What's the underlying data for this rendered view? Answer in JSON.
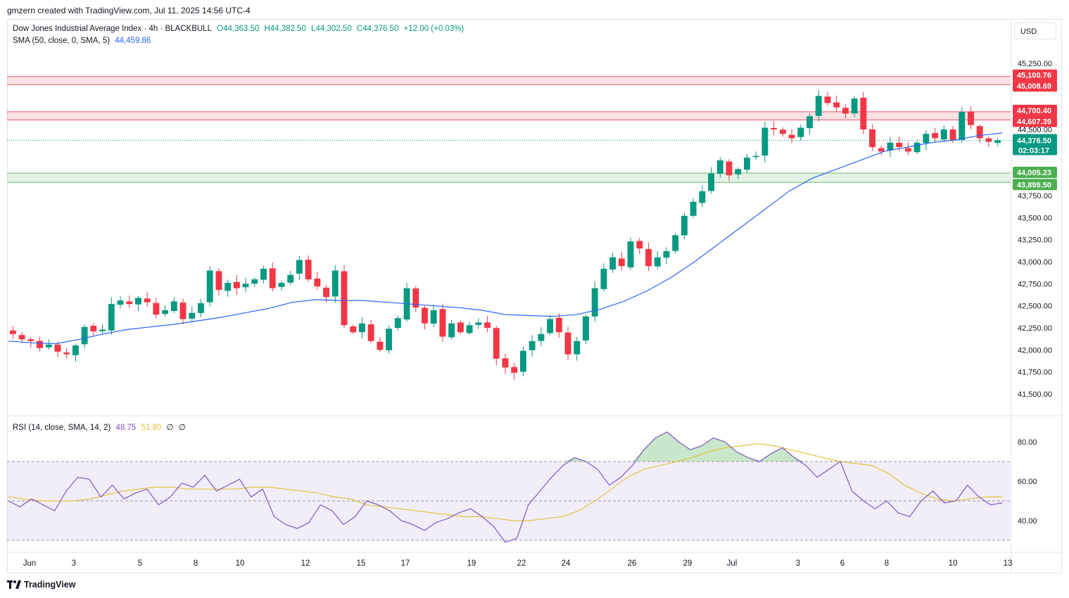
{
  "header": {
    "attribution": "gmzern created with TradingView.com, Jul 11, 2025 14:56 UTC-4"
  },
  "legend": {
    "symbol": "Dow Jones Industrial Average Index · 4h · BLACKBULL",
    "open": "O44,363.50",
    "high": "H44,382.50",
    "low": "L44,302.50",
    "close": "C44,376.50",
    "change": "+12.00 (+0.03%)",
    "sma_label": "SMA (50, close, 0, SMA, 5)",
    "sma_value": "44,459.86",
    "rsi_label": "RSI (14, close, SMA, 14, 2)",
    "rsi_value": "48.75",
    "rsi_sma_value": "51.80",
    "rsi_extra1": "∅",
    "rsi_extra2": "∅"
  },
  "currency": "USD",
  "footer": {
    "brand": "TradingView"
  },
  "colors": {
    "up": "#089981",
    "down": "#f23645",
    "sma": "#2962ff",
    "rsi": "#7e57c2",
    "rsi_sma": "#e1c339",
    "resistance_zone": "#f23645",
    "support_zone": "#4caf50"
  },
  "chart_data": [
    {
      "type": "candlestick",
      "title": "Dow Jones Industrial Average Index · 4h · BLACKBULL",
      "ylim": [
        41300,
        45450
      ],
      "y_ticks": [
        "45,250.00",
        "45,000.00",
        "44,750.00",
        "44,500.00",
        "44,250.00",
        "44,000.00",
        "43,750.00",
        "43,500.00",
        "43,250.00",
        "43,000.00",
        "42,750.00",
        "42,500.00",
        "42,250.00",
        "42,000.00",
        "41,750.00",
        "41,500.00"
      ],
      "x_labels": [
        "Jun",
        "3",
        "5",
        "8",
        "10",
        "12",
        "15",
        "17",
        "19",
        "22",
        "24",
        "26",
        "29",
        "Jul",
        "3",
        "6",
        "8",
        "10",
        "13"
      ],
      "close_path": [
        42180,
        42120,
        42100,
        42020,
        42060,
        41980,
        41950,
        42050,
        42260,
        42210,
        42230,
        42520,
        42560,
        42520,
        42590,
        42540,
        42400,
        42450,
        42550,
        42350,
        42420,
        42530,
        42900,
        42680,
        42760,
        42700,
        42750,
        42800,
        42920,
        42700,
        42760,
        42850,
        43020,
        42800,
        42720,
        42600,
        42900,
        42280,
        42200,
        42300,
        42100,
        42000,
        42240,
        42360,
        42700,
        42480,
        42300,
        42450,
        42150,
        42300,
        42200,
        42280,
        42310,
        42250,
        41900,
        41800,
        41740,
        41990,
        42100,
        42180,
        42350,
        42200,
        41950,
        42100,
        42380,
        42700,
        42920,
        43050,
        42950,
        43230,
        43150,
        42950,
        43050,
        43120,
        43300,
        43520,
        43680,
        43800,
        44000,
        44150,
        43980,
        44050,
        44180,
        44200,
        44520,
        44500,
        44450,
        44400,
        44520,
        44650,
        44880,
        44800,
        44750,
        44680,
        44850,
        44500,
        44300,
        44250,
        44350,
        44300,
        44250,
        44350,
        44450,
        44400,
        44500,
        44380,
        44700,
        44550,
        44400,
        44360,
        44376.5
      ],
      "sma50_path": [
        42100,
        42080,
        42070,
        42120,
        42180,
        42230,
        42260,
        42290,
        42330,
        42370,
        42420,
        42470,
        42540,
        42570,
        42560,
        42560,
        42540,
        42520,
        42500,
        42480,
        42450,
        42400,
        42390,
        42380,
        42400,
        42460,
        42550,
        42670,
        42820,
        43000,
        43200,
        43400,
        43600,
        43800,
        43950,
        44050,
        44150,
        44250,
        44300,
        44350,
        44380,
        44430,
        44460
      ],
      "current_price": 44376.5,
      "countdown": "02:03:17",
      "price_labels": {
        "r2_top": "45,100.76",
        "r2_bottom": "45,008.69",
        "r1_top": "44,700.40",
        "r1_bottom": "44,607.39",
        "current": "44,376.50",
        "s1_top": "44,005.23",
        "s1_bottom": "43,899.50"
      },
      "zones": [
        {
          "kind": "resistance",
          "top": 45100.76,
          "bottom": 45008.69
        },
        {
          "kind": "resistance",
          "top": 44700.4,
          "bottom": 44607.39
        },
        {
          "kind": "support",
          "top": 44005.23,
          "bottom": 43899.5
        }
      ]
    },
    {
      "type": "line",
      "title": "RSI (14, close, SMA, 14, 2)",
      "ylim": [
        25,
        90
      ],
      "y_ticks": [
        "80.00",
        "60.00",
        "40.00"
      ],
      "bands": {
        "upper": 70,
        "middle": 50,
        "lower": 30
      },
      "rsi": [
        50,
        47,
        51,
        48,
        45,
        55,
        62,
        61,
        52,
        58,
        51,
        54,
        56,
        48,
        52,
        59,
        57,
        63,
        55,
        58,
        61,
        52,
        56,
        42,
        38,
        36,
        39,
        48,
        45,
        38,
        42,
        50,
        48,
        45,
        40,
        38,
        35,
        39,
        41,
        44,
        46,
        42,
        37,
        29,
        31,
        48,
        55,
        62,
        68,
        72,
        70,
        66,
        58,
        62,
        68,
        76,
        82,
        85,
        80,
        76,
        78,
        82,
        80,
        75,
        72,
        70,
        74,
        77,
        72,
        68,
        62,
        66,
        70,
        55,
        50,
        46,
        50,
        44,
        42,
        50,
        55,
        49,
        50,
        58,
        52,
        48,
        49
      ],
      "rsi_sma": [
        52,
        51,
        50,
        50,
        50,
        51,
        53,
        55,
        56,
        57,
        57,
        56,
        56,
        56,
        56,
        57,
        57,
        56,
        55,
        54,
        52,
        51,
        48,
        47,
        46,
        45,
        44,
        43,
        42,
        42,
        41,
        40,
        40,
        41,
        42,
        45,
        50,
        56,
        62,
        66,
        68,
        70,
        72,
        75,
        77,
        78,
        79,
        78,
        76,
        74,
        72,
        70,
        69,
        68,
        64,
        58,
        54,
        51,
        50,
        51,
        52,
        52
      ]
    }
  ]
}
